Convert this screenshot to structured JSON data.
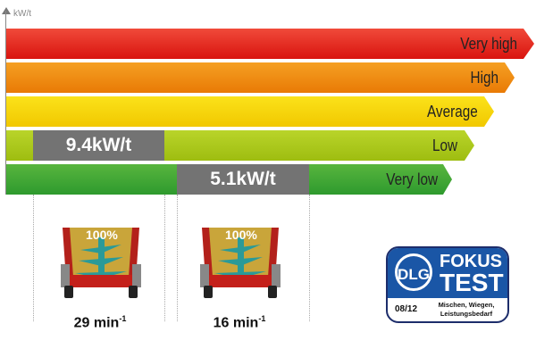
{
  "axis": {
    "unit": "kW/t"
  },
  "levels": [
    {
      "label": "Very high",
      "color": "#e3231f"
    },
    {
      "label": "High",
      "color": "#ee8a0c"
    },
    {
      "label": "Average",
      "color": "#f5d500"
    },
    {
      "label": "Low",
      "color": "#a8c61a"
    },
    {
      "label": "Very low",
      "color": "#3fa535"
    }
  ],
  "measurements": [
    {
      "value": "9.4kW/t",
      "level": "Low",
      "fill_percent": "100%",
      "rpm": "29 min",
      "rpm_exp": "-1"
    },
    {
      "value": "5.1kW/t",
      "level": "Very low",
      "fill_percent": "100%",
      "rpm": "16 min",
      "rpm_exp": "-1"
    }
  ],
  "badge": {
    "logo": "DLG",
    "title1": "FOKUS",
    "title2": "TEST",
    "date": "08/12",
    "desc1": "Mischen, Wiegen,",
    "desc2": "Leistungsbedarf",
    "color": "#1a56a6"
  }
}
